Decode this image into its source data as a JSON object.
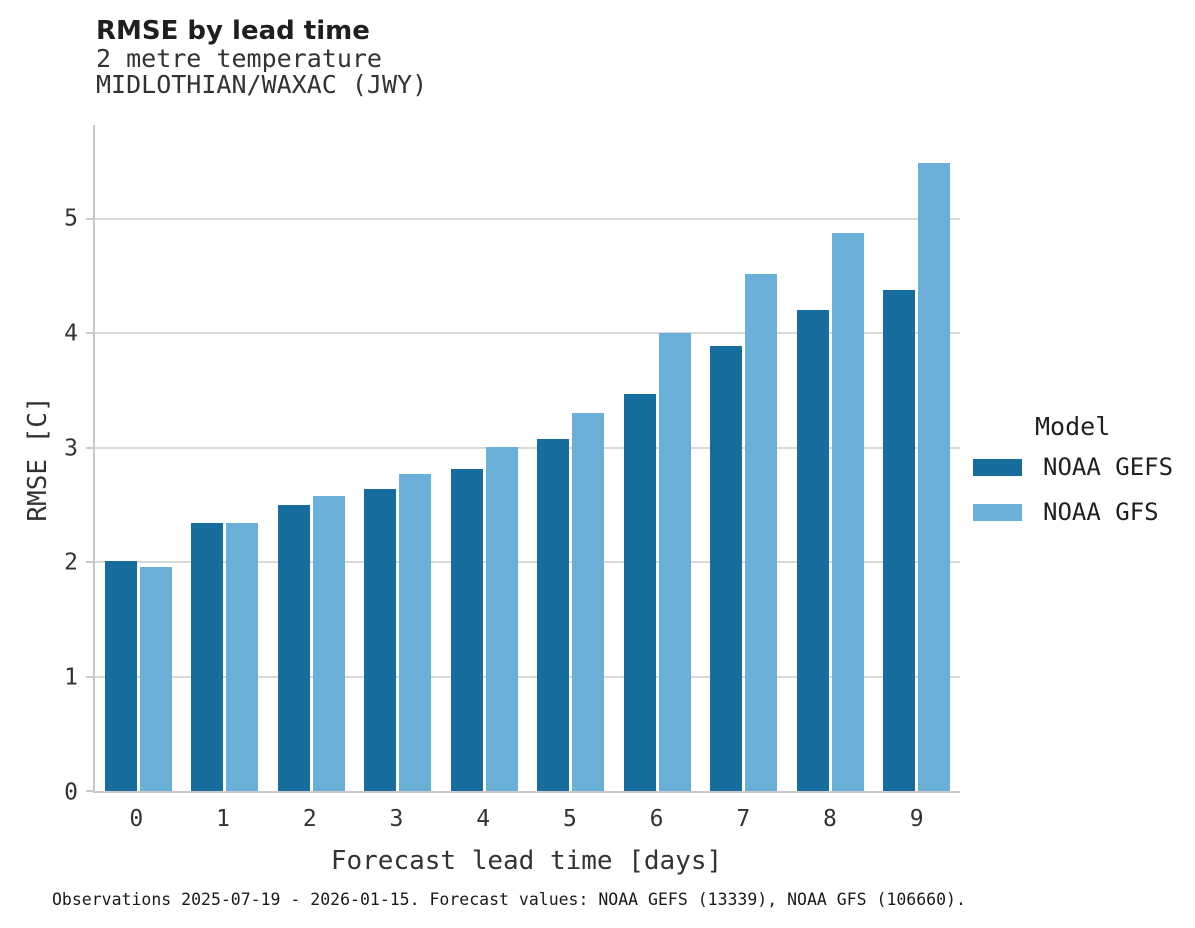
{
  "header": {
    "title": "RMSE by lead time",
    "subtitle_line1": "2 metre temperature",
    "subtitle_line2": "MIDLOTHIAN/WAXAC (JWY)"
  },
  "legend": {
    "title": "Model",
    "items": [
      {
        "label": "NOAA GEFS",
        "color": "#176e9e"
      },
      {
        "label": "NOAA GFS",
        "color": "#69afd8"
      }
    ]
  },
  "footer": {
    "text": "Observations 2025-07-19 - 2026-01-15. Forecast values: NOAA GEFS (13339), NOAA GFS (106660)."
  },
  "chart_data": {
    "type": "bar",
    "title": "RMSE by lead time",
    "subtitle": [
      "2 metre temperature",
      "MIDLOTHIAN/WAXAC (JWY)"
    ],
    "categories": [
      "0",
      "1",
      "2",
      "3",
      "4",
      "5",
      "6",
      "7",
      "8",
      "9"
    ],
    "series": [
      {
        "name": "NOAA GEFS",
        "color": "#176e9e",
        "values": [
          2.01,
          2.34,
          2.5,
          2.64,
          2.81,
          3.08,
          3.47,
          3.89,
          4.2,
          4.38
        ]
      },
      {
        "name": "NOAA GFS",
        "color": "#69afd8",
        "values": [
          1.96,
          2.34,
          2.58,
          2.77,
          3.01,
          3.3,
          4.0,
          4.52,
          4.88,
          5.49
        ]
      }
    ],
    "xlabel": "Forecast lead time [days]",
    "ylabel": "RMSE [C]",
    "ylim": [
      0,
      5.82
    ],
    "yticks": [
      0,
      1,
      2,
      3,
      4,
      5
    ],
    "grid": true,
    "legend_title": "Model",
    "legend_position": "right",
    "caption": "Observations 2025-07-19 - 2026-01-15. Forecast values: NOAA GEFS (13339), NOAA GFS (106660)."
  }
}
